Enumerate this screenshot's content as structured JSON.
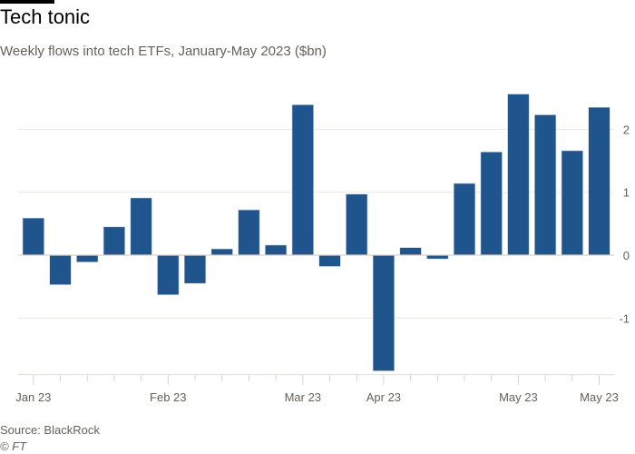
{
  "chart_data": {
    "type": "bar",
    "title": "Tech tonic",
    "subtitle": "Weekly flows into tech ETFs, January-May 2023 ($bn)",
    "source": "Source: BlackRock",
    "credit": "© FT",
    "categories": [
      "2023-01-06",
      "2023-01-13",
      "2023-01-20",
      "2023-01-27",
      "2023-02-03",
      "2023-02-10",
      "2023-02-17",
      "2023-02-24",
      "2023-03-03",
      "2023-03-10",
      "2023-03-17",
      "2023-03-24",
      "2023-03-31",
      "2023-04-07",
      "2023-04-14",
      "2023-04-21",
      "2023-04-28",
      "2023-05-05",
      "2023-05-12",
      "2023-05-19",
      "2023-05-26",
      "2023-06-02"
    ],
    "values": [
      0.59,
      -0.47,
      -0.11,
      0.45,
      0.91,
      -0.63,
      -0.45,
      0.1,
      0.72,
      0.16,
      2.39,
      -0.18,
      0.97,
      -1.84,
      0.12,
      -0.06,
      1.14,
      1.64,
      2.56,
      2.23,
      1.66,
      2.35
    ],
    "x_tick_labels": [
      {
        "index": 0,
        "label": "Jan 23"
      },
      {
        "index": 5,
        "label": "Feb 23"
      },
      {
        "index": 10,
        "label": "Mar 23"
      },
      {
        "index": 13,
        "label": "Apr 23"
      },
      {
        "index": 18,
        "label": "May 23"
      },
      {
        "index": 21,
        "label": "May 23"
      }
    ],
    "y_ticks": [
      -1,
      0,
      1,
      2
    ],
    "ylim": [
      -1.9,
      2.6
    ],
    "y_axis_side": "right",
    "grid": true,
    "colors": {
      "bar": "#1f558c",
      "grid": "#ebe6e1",
      "text": "#33302e",
      "muted": "#66605c"
    }
  }
}
